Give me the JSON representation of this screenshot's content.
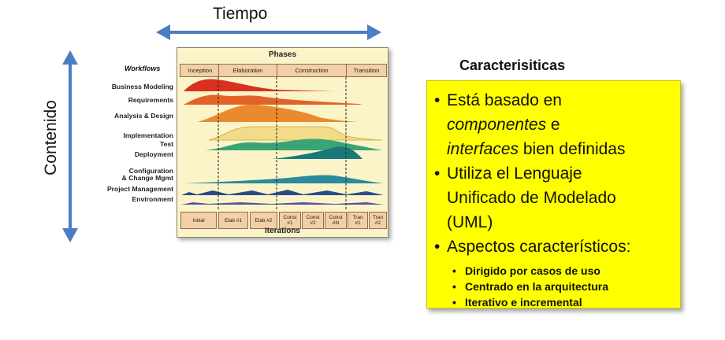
{
  "axes": {
    "horizontal_label": "Tiempo",
    "vertical_label": "Contenido",
    "arrow_color": "#4a7ec4"
  },
  "diagram": {
    "phases_title": "Phases",
    "workflows_title": "Workflows",
    "iterations_title": "Iterations",
    "phases": [
      "Inception",
      "Elaboration",
      "Construction",
      "Transition"
    ],
    "iterations": [
      "Initial",
      "Elab #1",
      "Elab #2",
      "Const\n#1",
      "Const\n#2",
      "Const\n#N",
      "Tran\n#1",
      "Tran\n#2"
    ],
    "workflows": [
      {
        "label": "Business Modeling",
        "color": "#d8321e"
      },
      {
        "label": "Requirements",
        "color": "#e2632a"
      },
      {
        "label": "Analysis & Design",
        "color": "#ea8a2e"
      },
      {
        "label": "Implementation",
        "color": "#f2dc8a"
      },
      {
        "label": "Test",
        "color": "#3aa574"
      },
      {
        "label": "Deployment",
        "color": "#19797a"
      },
      {
        "label": "Configuration\n& Change Mgmt",
        "color": "#2b8b9c"
      },
      {
        "label": "Project Management",
        "color": "#2a4a8a"
      },
      {
        "label": "Environment",
        "color": "#5b4fa0"
      }
    ]
  },
  "characteristics": {
    "title": "Caracterisiticas",
    "box_color": "#ffff00",
    "bullets": [
      {
        "lines": [
          [
            {
              "t": "Está basado en",
              "i": false
            }
          ],
          [
            {
              "t": "componentes",
              "i": true
            },
            {
              "t": " e",
              "i": false
            }
          ],
          [
            {
              "t": "interfaces",
              "i": true
            },
            {
              "t": " bien definidas",
              "i": false
            }
          ]
        ]
      },
      {
        "lines": [
          [
            {
              "t": "Utiliza el Lenguaje",
              "i": false
            }
          ],
          [
            {
              "t": "Unificado de Modelado",
              "i": false
            }
          ],
          [
            {
              "t": "(UML)",
              "i": false
            }
          ]
        ]
      },
      {
        "lines": [
          [
            {
              "t": "Aspectos característicos:",
              "i": false
            }
          ]
        ]
      }
    ],
    "sub_bullets": [
      "Dirigido por casos de uso",
      "Centrado en la arquitectura",
      "Iterativo e incremental"
    ]
  }
}
